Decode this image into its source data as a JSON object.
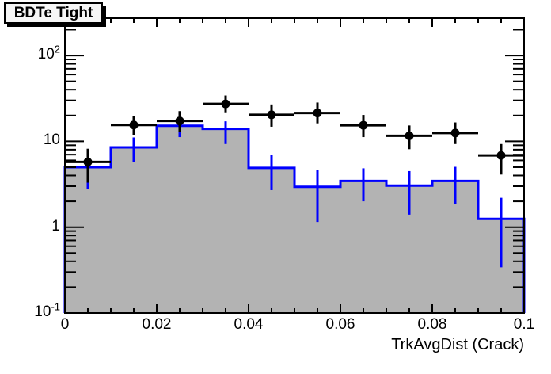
{
  "title": {
    "text": "BDTe Tight"
  },
  "axes": {
    "x": {
      "title": "TrkAvgDist (Crack)",
      "min": 0,
      "max": 0.1,
      "major_ticks": [
        0,
        0.02,
        0.04,
        0.06,
        0.08,
        0.1
      ],
      "tick_labels": [
        "0",
        "0.02",
        "0.04",
        "0.06",
        "0.08",
        "0.1"
      ],
      "minor_step": 0.005
    },
    "y": {
      "scale": "log",
      "min": 0.1,
      "max": 272,
      "major_ticks": [
        0.1,
        1,
        10,
        100
      ],
      "tick_labels": [
        {
          "text": "10",
          "sup": "2",
          "value": 100
        },
        {
          "text": "10",
          "sup": "",
          "value": 10
        },
        {
          "text": "1",
          "sup": "",
          "value": 1
        },
        {
          "text": "10",
          "sup": "-1",
          "value": 0.1
        }
      ]
    }
  },
  "chart_data": {
    "type": "bar",
    "subtype": "log-histogram-with-data-points",
    "title": "BDTe Tight",
    "xlabel": "TrkAvgDist (Crack)",
    "ylabel": "",
    "xlim": [
      0,
      0.1
    ],
    "ylim": [
      0.1,
      272
    ],
    "grid": false,
    "legend": "none",
    "bin_edges": [
      0,
      0.01,
      0.02,
      0.03,
      0.04,
      0.05,
      0.06,
      0.07,
      0.08,
      0.09,
      0.1
    ],
    "series": [
      {
        "name": "filled-histogram",
        "style": "step-filled",
        "line_color": "#0000ff",
        "fill_color": "#b3b3b3",
        "values": [
          5.0,
          8.5,
          15.2,
          14.0,
          4.9,
          2.95,
          3.45,
          3.05,
          3.45,
          1.25
        ],
        "err_lo": [
          2.8,
          5.7,
          11.2,
          9.3,
          2.7,
          1.15,
          2.0,
          1.4,
          1.85,
          0.34
        ],
        "err_hi": [
          7.2,
          11.1,
          19.0,
          17.1,
          7.0,
          4.65,
          4.85,
          4.5,
          5.05,
          2.2
        ]
      },
      {
        "name": "data-points",
        "style": "points-with-errors",
        "color": "#000000",
        "x": [
          0.005,
          0.015,
          0.025,
          0.035,
          0.045,
          0.055,
          0.065,
          0.075,
          0.085,
          0.095
        ],
        "y": [
          5.75,
          15.5,
          17.3,
          27.3,
          20.4,
          21.4,
          15.4,
          11.6,
          12.5,
          6.85
        ],
        "err_lo": [
          3.3,
          11.9,
          12.8,
          21.8,
          14.8,
          16.2,
          11.2,
          8.1,
          9.3,
          4.1
        ],
        "err_hi": [
          8.2,
          19.8,
          22.5,
          34.2,
          26.9,
          28.3,
          20.3,
          15.3,
          16.6,
          9.3
        ],
        "xerr": 0.005
      }
    ]
  },
  "colors": {
    "histogram_fill": "#b3b3b3",
    "histogram_line": "#0000ff",
    "data_points": "#000000",
    "frame": "#000000",
    "background": "#ffffff"
  }
}
